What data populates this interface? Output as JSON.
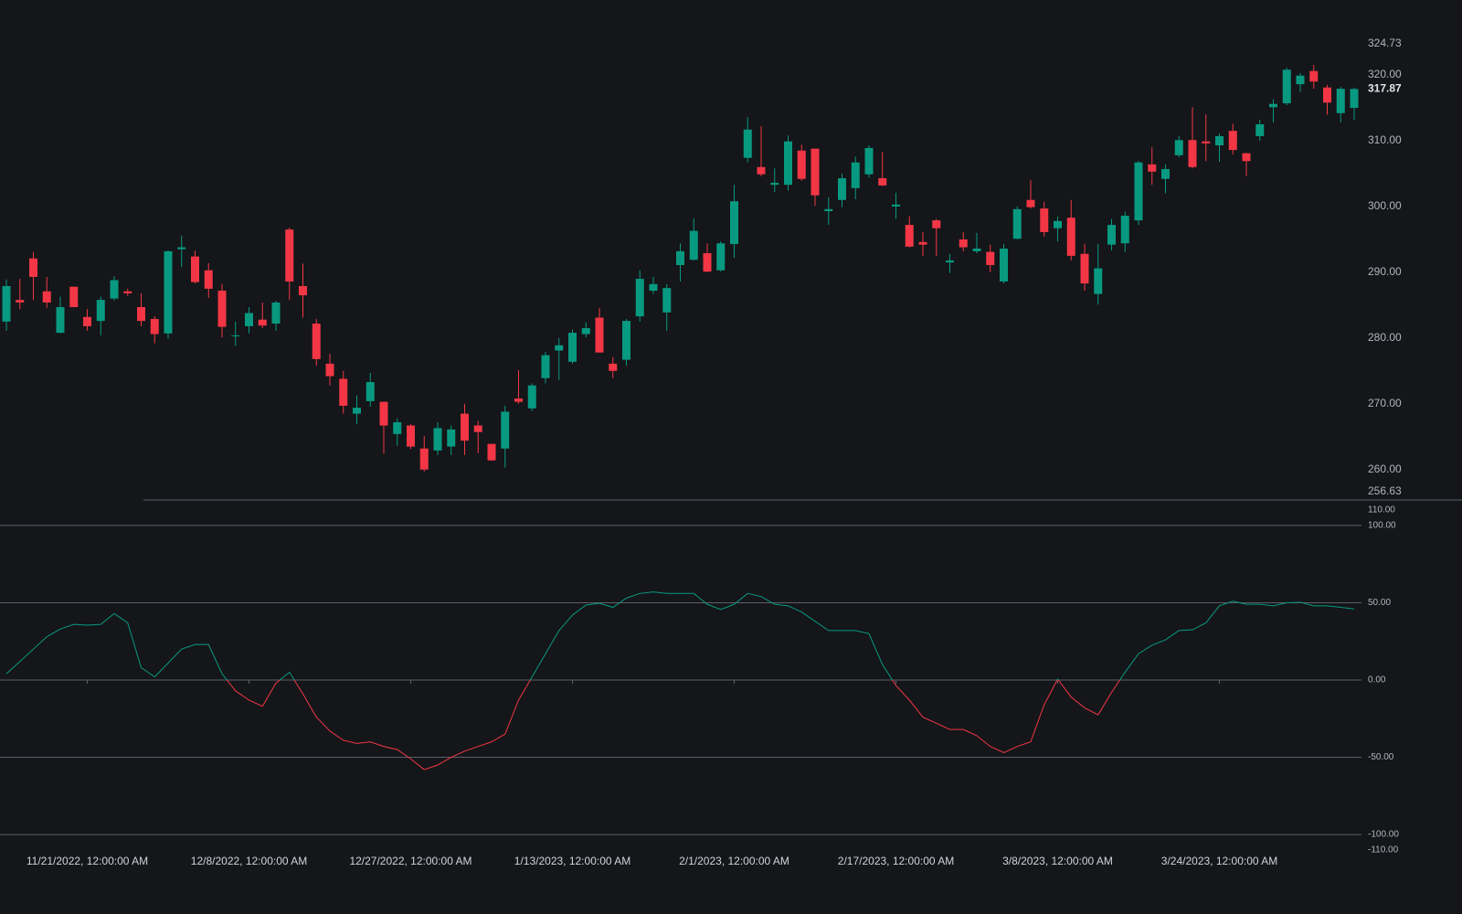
{
  "chart_data": [
    {
      "type": "candlestick",
      "up_color": "#089981",
      "down_color": "#f23645",
      "ylim": [
        256.63,
        324.73
      ],
      "yticks": [
        {
          "value": 260,
          "label": "260.00"
        },
        {
          "value": 270,
          "label": "270.00"
        },
        {
          "value": 280,
          "label": "280.00"
        },
        {
          "value": 290,
          "label": "290.00"
        },
        {
          "value": 300,
          "label": "300.00"
        },
        {
          "value": 310,
          "label": "310.00"
        },
        {
          "value": 320,
          "label": "320.00"
        }
      ],
      "last_price": 317.87,
      "open": [
        282.5,
        285.8,
        292.1,
        287.1,
        280.8,
        287.8,
        283.2,
        282.6,
        286.0,
        287.1,
        284.7,
        282.9,
        280.7,
        293.5,
        292.4,
        290.3,
        287.2,
        280.3,
        281.8,
        282.8,
        282.2,
        296.5,
        287.9,
        282.2,
        276.1,
        273.8,
        268.5,
        270.4,
        270.3,
        265.4,
        266.7,
        263.2,
        262.9,
        263.5,
        268.5,
        266.7,
        263.9,
        263.2,
        270.8,
        269.3,
        273.9,
        278.1,
        276.4,
        280.6,
        283.1,
        276.1,
        276.7,
        283.3,
        287.2,
        283.9,
        291.1,
        291.9,
        292.9,
        290.3,
        294.3,
        307.4,
        306.0,
        303.3,
        303.3,
        308.5,
        308.8,
        299.3,
        301.0,
        302.8,
        304.9,
        304.3,
        300.0,
        297.2,
        294.6,
        297.9,
        291.5,
        295.0,
        293.2,
        293.1,
        288.6,
        295.1,
        301.0,
        299.7,
        296.7,
        298.3,
        292.8,
        286.7,
        294.2,
        294.4,
        297.9,
        306.4,
        304.2,
        307.8,
        310.1,
        309.9,
        309.3,
        311.5,
        308.1,
        310.7,
        315.1,
        315.7,
        318.6,
        320.6,
        318.1,
        314.2,
        315.0
      ],
      "high": [
        288.9,
        289.0,
        293.1,
        289.3,
        286.3,
        287.8,
        284.4,
        286.3,
        289.4,
        287.5,
        286.8,
        283.3,
        293.3,
        295.6,
        293.3,
        291.4,
        288.2,
        282.5,
        284.7,
        285.4,
        285.7,
        296.8,
        291.3,
        282.9,
        277.6,
        275.0,
        271.3,
        274.7,
        270.3,
        267.8,
        266.9,
        265.1,
        267.2,
        266.7,
        270.0,
        267.4,
        263.9,
        269.7,
        275.1,
        273.1,
        277.9,
        280.0,
        281.3,
        282.4,
        284.6,
        277.1,
        282.9,
        290.3,
        289.3,
        288.2,
        294.4,
        298.2,
        294.4,
        294.7,
        303.3,
        313.6,
        312.2,
        305.8,
        310.8,
        309.4,
        308.8,
        301.4,
        305.0,
        307.6,
        309.3,
        308.3,
        302.1,
        298.5,
        296.1,
        298.1,
        292.8,
        296.1,
        296.0,
        294.2,
        294.3,
        300.0,
        304.0,
        300.7,
        298.5,
        301.0,
        294.3,
        294.3,
        298.1,
        299.2,
        306.9,
        309.0,
        306.4,
        310.7,
        315.1,
        314.0,
        311.1,
        312.6,
        308.2,
        313.2,
        316.3,
        321.1,
        320.3,
        321.5,
        318.5,
        318.2,
        318.1
      ],
      "low": [
        281.1,
        284.4,
        285.8,
        284.6,
        280.7,
        284.7,
        281.1,
        280.4,
        285.7,
        286.4,
        281.8,
        279.2,
        279.9,
        290.8,
        288.3,
        286.1,
        280.1,
        278.8,
        280.7,
        281.5,
        281.1,
        285.8,
        283.1,
        275.8,
        272.8,
        268.5,
        266.9,
        269.6,
        262.4,
        263.6,
        263.1,
        259.7,
        262.2,
        262.2,
        262.2,
        262.5,
        261.3,
        260.3,
        270.0,
        268.9,
        273.1,
        273.6,
        276.1,
        280.1,
        277.8,
        273.9,
        275.8,
        282.5,
        286.7,
        281.1,
        288.6,
        291.8,
        290.0,
        290.1,
        292.2,
        306.7,
        304.6,
        302.2,
        302.4,
        303.9,
        300.1,
        297.2,
        299.9,
        301.1,
        304.4,
        303.1,
        298.1,
        293.8,
        292.5,
        292.5,
        289.9,
        293.2,
        292.9,
        290.0,
        288.3,
        295.0,
        299.7,
        295.4,
        294.7,
        291.8,
        287.2,
        285.1,
        293.3,
        293.1,
        297.2,
        303.3,
        302.0,
        307.5,
        305.8,
        306.9,
        306.8,
        307.9,
        304.6,
        310.0,
        312.8,
        315.4,
        317.4,
        317.9,
        314.0,
        312.8,
        313.2
      ],
      "close": [
        287.9,
        285.4,
        289.3,
        285.4,
        284.7,
        284.7,
        281.8,
        285.8,
        288.8,
        286.8,
        282.6,
        280.6,
        293.2,
        293.8,
        288.5,
        287.5,
        281.7,
        280.4,
        283.8,
        281.9,
        285.4,
        288.6,
        286.5,
        276.8,
        274.2,
        269.7,
        269.4,
        273.3,
        266.7,
        267.2,
        263.5,
        260.0,
        266.3,
        266.1,
        264.4,
        265.7,
        261.4,
        268.8,
        270.3,
        272.8,
        277.4,
        278.9,
        280.8,
        281.5,
        277.8,
        275.0,
        282.6,
        289.0,
        288.2,
        287.6,
        293.2,
        296.3,
        290.1,
        294.4,
        300.8,
        311.7,
        304.9,
        303.6,
        309.9,
        304.2,
        301.7,
        299.6,
        304.3,
        306.7,
        308.9,
        303.2,
        300.3,
        293.9,
        294.2,
        296.7,
        291.8,
        293.8,
        293.6,
        291.1,
        293.6,
        299.6,
        299.9,
        296.1,
        297.8,
        292.5,
        288.3,
        290.6,
        297.2,
        298.6,
        306.7,
        305.3,
        305.7,
        310.1,
        306.0,
        309.6,
        310.7,
        308.6,
        306.9,
        312.5,
        315.6,
        320.8,
        319.9,
        319.0,
        315.8,
        317.9,
        317.87
      ]
    },
    {
      "type": "line",
      "above_color": "#089981",
      "below_color": "#f23645",
      "ylim": [
        -110,
        110
      ],
      "ylim_labels": [
        "-110.00",
        "110.00"
      ],
      "yticks": [
        {
          "value": -100,
          "label": "-100.00"
        },
        {
          "value": -50,
          "label": "-50.00"
        },
        {
          "value": 0,
          "label": "0.00"
        },
        {
          "value": 50,
          "label": "50.00"
        },
        {
          "value": 100,
          "label": "100.00"
        }
      ],
      "categories": [
        null,
        null,
        null,
        null,
        null,
        null,
        "11/21/2022, 12:00:00 AM",
        null,
        null,
        null,
        null,
        null,
        null,
        null,
        null,
        null,
        null,
        null,
        "12/8/2022, 12:00:00 AM",
        null,
        null,
        null,
        null,
        null,
        null,
        null,
        null,
        null,
        null,
        null,
        "12/27/2022, 12:00:00 AM",
        null,
        null,
        null,
        null,
        null,
        null,
        null,
        null,
        null,
        null,
        null,
        "1/13/2023, 12:00:00 AM",
        null,
        null,
        null,
        null,
        null,
        null,
        null,
        null,
        null,
        null,
        null,
        "2/1/2023, 12:00:00 AM",
        null,
        null,
        null,
        null,
        null,
        null,
        null,
        null,
        null,
        null,
        null,
        "2/17/2023, 12:00:00 AM",
        null,
        null,
        null,
        null,
        null,
        null,
        null,
        null,
        null,
        null,
        null,
        "3/8/2023, 12:00:00 AM",
        null,
        null,
        null,
        null,
        null,
        null,
        null,
        null,
        null,
        null,
        null,
        "3/24/2023, 12:00:00 AM",
        null,
        null,
        null,
        null,
        null,
        null,
        null,
        null,
        null,
        null
      ],
      "values": [
        4,
        12,
        20,
        28,
        33,
        36,
        35.5,
        36,
        43,
        37,
        8,
        2,
        11,
        20,
        23,
        23,
        4,
        -7,
        -13,
        -17,
        -2,
        5,
        -9,
        -24,
        -33,
        -39,
        -41,
        -40,
        -43,
        -45,
        -51,
        -58,
        -55,
        -50,
        -46,
        -43,
        -40,
        -35,
        -13,
        2,
        17,
        32,
        42,
        48.5,
        49.7,
        47,
        53,
        56,
        57,
        56,
        56,
        56,
        49,
        45.6,
        49,
        56,
        54,
        49,
        48,
        44,
        38,
        32,
        32,
        32,
        30,
        10,
        -3.5,
        -13,
        -24,
        -28,
        -32,
        -32,
        -36,
        -43,
        -47,
        -43,
        -40,
        -16,
        0.6,
        -11,
        -18,
        -22.5,
        -8,
        5,
        17,
        22.5,
        26,
        32,
        32.5,
        37,
        48,
        51,
        49,
        49,
        48,
        50,
        50.3,
        48,
        48,
        47,
        46
      ]
    }
  ]
}
